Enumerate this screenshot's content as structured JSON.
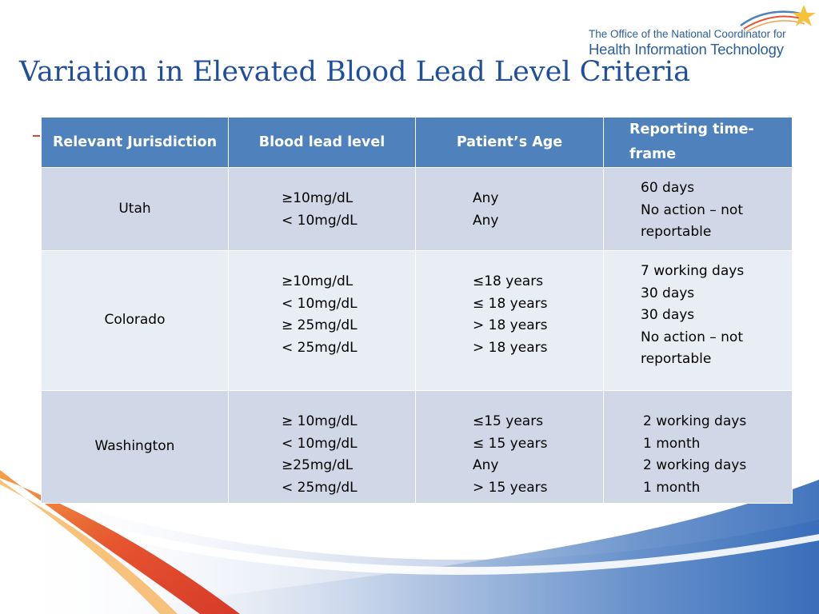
{
  "slide": {
    "title": "Variation in Elevated Blood Lead Level Criteria"
  },
  "logo": {
    "line1": "The Office of the National Coordinator for",
    "line2": "Health Information Technology",
    "icon": "star-swoosh-icon"
  },
  "table": {
    "headers": {
      "jurisdiction": "Relevant Jurisdiction",
      "level": "Blood lead level",
      "age": "Patient’s Age",
      "timeframe": "Reporting time-frame"
    },
    "rows": [
      {
        "jurisdiction": "Utah",
        "levels": [
          "≥10mg/dL",
          "< 10mg/dL"
        ],
        "ages": [
          "Any",
          "Any"
        ],
        "timeframes": [
          "60 days",
          "No action – not",
          "reportable"
        ]
      },
      {
        "jurisdiction": "Colorado",
        "levels": [
          "≥10mg/dL",
          "< 10mg/dL",
          "≥ 25mg/dL",
          "< 25mg/dL"
        ],
        "ages": [
          "≤18 years",
          "≤ 18 years",
          "> 18 years",
          "> 18 years"
        ],
        "timeframes": [
          "7 working days",
          "30 days",
          "30 days",
          "No action – not",
          "reportable"
        ]
      },
      {
        "jurisdiction": "Washington",
        "levels": [
          "≥ 10mg/dL",
          "< 10mg/dL",
          "≥25mg/dL",
          "< 25mg/dL"
        ],
        "ages": [
          "≤15 years",
          "≤ 15 years",
          "Any",
          "> 15 years"
        ],
        "timeframes": [
          "2 working days",
          "1 month",
          "2 working days",
          "1 month"
        ]
      }
    ]
  },
  "colors": {
    "title": "#1f4e9c",
    "header_fill": "#4f81bd",
    "row_dark": "#d0d8e8",
    "row_light": "#e9edf4",
    "logo_text": "#2c5f99"
  }
}
